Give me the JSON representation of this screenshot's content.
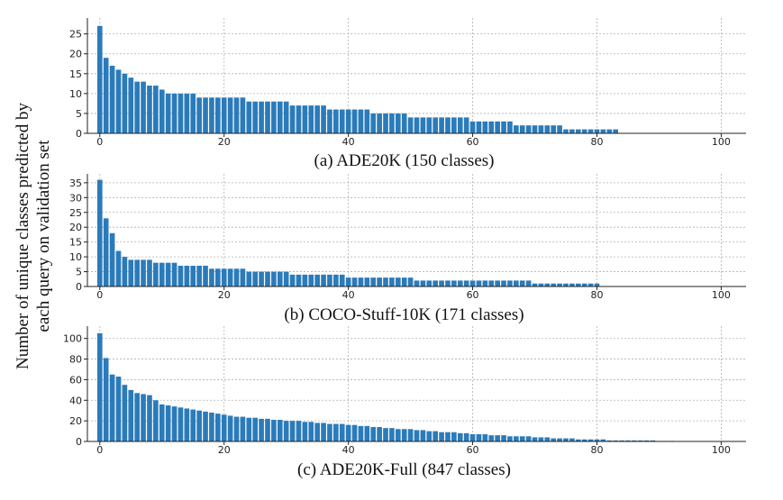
{
  "ylabel_line1": "Number of unique classes predicted by",
  "ylabel_line2": "each query on validation set",
  "bar_color": "#2b7bba",
  "chart_data": [
    {
      "type": "bar",
      "title": "(a) ADE20K (150 classes)",
      "xlabel": "",
      "ylabel": "",
      "xlim": [
        -2,
        104
      ],
      "ylim": [
        0,
        29
      ],
      "xticks": [
        0,
        20,
        40,
        60,
        80,
        100
      ],
      "yticks": [
        0,
        5,
        10,
        15,
        20,
        25
      ],
      "values": [
        27,
        19,
        17,
        16,
        15,
        14,
        13,
        13,
        12,
        12,
        11,
        10,
        10,
        10,
        10,
        10,
        9,
        9,
        9,
        9,
        9,
        9,
        9,
        9,
        8,
        8,
        8,
        8,
        8,
        8,
        8,
        7,
        7,
        7,
        7,
        7,
        7,
        6,
        6,
        6,
        6,
        6,
        6,
        6,
        5,
        5,
        5,
        5,
        5,
        5,
        4,
        4,
        4,
        4,
        4,
        4,
        4,
        4,
        4,
        4,
        3,
        3,
        3,
        3,
        3,
        3,
        3,
        2,
        2,
        2,
        2,
        2,
        2,
        2,
        2,
        1,
        1,
        1,
        1,
        1,
        1,
        1,
        1,
        1
      ]
    },
    {
      "type": "bar",
      "title": "(b) COCO-Stuff-10K (171 classes)",
      "xlabel": "",
      "ylabel": "",
      "xlim": [
        -2,
        104
      ],
      "ylim": [
        0,
        38
      ],
      "xticks": [
        0,
        20,
        40,
        60,
        80,
        100
      ],
      "yticks": [
        0,
        5,
        10,
        15,
        20,
        25,
        30,
        35
      ],
      "values": [
        36,
        23,
        18,
        12,
        10,
        9,
        9,
        9,
        9,
        8,
        8,
        8,
        8,
        7,
        7,
        7,
        7,
        7,
        6,
        6,
        6,
        6,
        6,
        6,
        5,
        5,
        5,
        5,
        5,
        5,
        5,
        4,
        4,
        4,
        4,
        4,
        4,
        4,
        4,
        4,
        3,
        3,
        3,
        3,
        3,
        3,
        3,
        3,
        3,
        3,
        3,
        2,
        2,
        2,
        2,
        2,
        2,
        2,
        2,
        2,
        2,
        2,
        2,
        2,
        2,
        2,
        2,
        2,
        2,
        2,
        1,
        1,
        1,
        1,
        1,
        1,
        1,
        1,
        1,
        1,
        1
      ]
    },
    {
      "type": "bar",
      "title": "(c) ADE20K-Full (847 classes)",
      "xlabel": "",
      "ylabel": "",
      "xlim": [
        -2,
        104
      ],
      "ylim": [
        0,
        112
      ],
      "xticks": [
        0,
        20,
        40,
        60,
        80,
        100
      ],
      "yticks": [
        0,
        20,
        40,
        60,
        80,
        100
      ],
      "values": [
        105,
        81,
        65,
        63,
        55,
        50,
        47,
        46,
        45,
        40,
        36,
        35,
        34,
        33,
        32,
        31,
        30,
        29,
        28,
        27,
        26,
        25,
        24,
        24,
        23,
        23,
        22,
        22,
        21,
        21,
        20,
        20,
        20,
        19,
        19,
        18,
        18,
        17,
        17,
        17,
        16,
        16,
        15,
        15,
        14,
        14,
        13,
        13,
        12,
        12,
        12,
        11,
        11,
        10,
        10,
        9,
        9,
        9,
        8,
        8,
        7,
        7,
        7,
        6,
        6,
        6,
        5,
        5,
        5,
        5,
        4,
        4,
        4,
        3,
        3,
        3,
        3,
        2,
        2,
        2,
        2,
        2,
        1,
        1,
        1,
        1,
        1,
        1,
        1,
        1,
        0.5,
        0.5,
        0.5,
        0.3
      ]
    }
  ]
}
